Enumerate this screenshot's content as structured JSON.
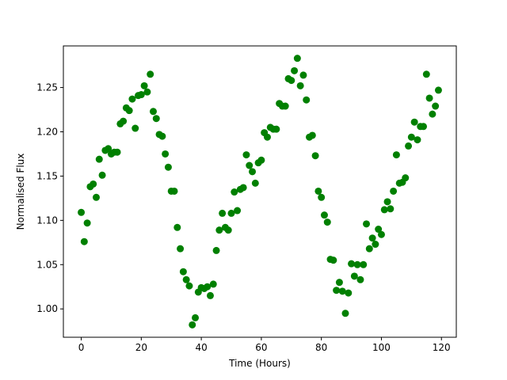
{
  "chart_data": {
    "type": "scatter",
    "x_label": "Time (Hours)",
    "y_label": "Normalised Flux",
    "color": "#008000",
    "x": [
      0,
      1,
      2,
      3,
      4,
      5,
      6,
      7,
      8,
      9,
      10,
      11,
      12,
      13,
      14,
      15,
      16,
      17,
      18,
      19,
      20,
      21,
      22,
      23,
      24,
      25,
      26,
      27,
      28,
      29,
      30,
      31,
      32,
      33,
      34,
      35,
      36,
      37,
      38,
      39,
      40,
      41,
      42,
      43,
      44,
      45,
      46,
      47,
      48,
      49,
      50,
      51,
      52,
      53,
      54,
      55,
      56,
      57,
      58,
      59,
      60,
      61,
      62,
      63,
      64,
      65,
      66,
      67,
      68,
      69,
      70,
      71,
      72,
      73,
      74,
      75,
      76,
      77,
      78,
      79,
      80,
      81,
      82,
      83,
      84,
      85,
      86,
      87,
      88,
      89,
      90,
      91,
      92,
      93,
      94,
      95,
      96,
      97,
      98,
      99,
      100,
      101,
      102,
      103,
      104,
      105,
      106,
      107,
      108,
      109,
      110,
      111,
      112,
      113,
      114,
      115,
      116,
      117,
      118,
      119
    ],
    "values": [
      1.109,
      1.076,
      1.097,
      1.138,
      1.141,
      1.126,
      1.169,
      1.151,
      1.179,
      1.181,
      1.175,
      1.177,
      1.177,
      1.209,
      1.212,
      1.227,
      1.224,
      1.237,
      1.204,
      1.241,
      1.242,
      1.252,
      1.245,
      1.265,
      1.223,
      1.215,
      1.197,
      1.195,
      1.175,
      1.16,
      1.133,
      1.133,
      1.092,
      1.068,
      1.042,
      1.033,
      1.026,
      0.982,
      0.99,
      1.019,
      1.024,
      1.023,
      1.025,
      1.015,
      1.028,
      1.066,
      1.089,
      1.108,
      1.092,
      1.089,
      1.108,
      1.132,
      1.111,
      1.135,
      1.137,
      1.174,
      1.162,
      1.155,
      1.142,
      1.165,
      1.168,
      1.199,
      1.194,
      1.205,
      1.203,
      1.203,
      1.232,
      1.229,
      1.229,
      1.26,
      1.258,
      1.269,
      1.283,
      1.252,
      1.264,
      1.236,
      1.194,
      1.196,
      1.173,
      1.133,
      1.126,
      1.106,
      1.098,
      1.056,
      1.055,
      1.021,
      1.03,
      1.02,
      0.995,
      1.018,
      1.051,
      1.037,
      1.05,
      1.033,
      1.05,
      1.096,
      1.068,
      1.08,
      1.073,
      1.09,
      1.084,
      1.112,
      1.121,
      1.113,
      1.133,
      1.174,
      1.142,
      1.143,
      1.148,
      1.184,
      1.194,
      1.211,
      1.191,
      1.206,
      1.206,
      1.265,
      1.238,
      1.22,
      1.229,
      1.247
    ],
    "xlim": [
      -5.95,
      124.95
    ],
    "xticks": [
      0,
      20,
      40,
      60,
      80,
      100,
      120
    ],
    "ylim": [
      0.968,
      1.297
    ],
    "yticks": [
      {
        "value": 1,
        "label": "1.00"
      },
      {
        "value": 1.05,
        "label": "1.05"
      },
      {
        "value": 1.1,
        "label": "1.10"
      },
      {
        "value": 1.15,
        "label": "1.15"
      },
      {
        "value": 1.2,
        "label": "1.20"
      },
      {
        "value": 1.25,
        "label": "1.25"
      }
    ]
  }
}
